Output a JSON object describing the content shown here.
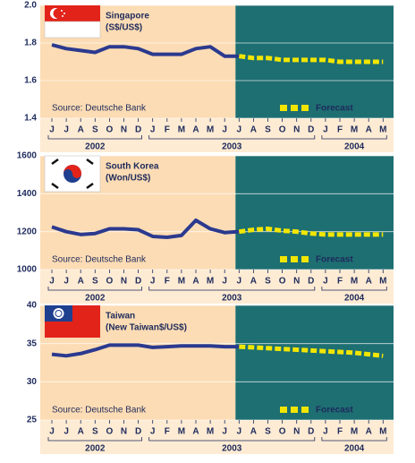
{
  "chart_data": [
    {
      "type": "line",
      "title": "Singapore",
      "subtitle": "(S$/US$)",
      "annotation": "Source: Deutsche Bank",
      "categories": [
        "J",
        "J",
        "A",
        "S",
        "O",
        "N",
        "D",
        "J",
        "F",
        "M",
        "A",
        "M",
        "J",
        "J",
        "A",
        "S",
        "O",
        "N",
        "D",
        "J",
        "F",
        "M",
        "A",
        "M"
      ],
      "year_labels": [
        "2002",
        "2003",
        "2004"
      ],
      "ylim": [
        1.4,
        2.0
      ],
      "yticks": [
        1.4,
        1.6,
        1.8,
        {
          "value": 2.0,
          "label": "2.0"
        }
      ],
      "grid": true,
      "series": [
        {
          "color": "#2b3a8f",
          "values": [
            1.79,
            1.77,
            1.76,
            1.75,
            1.78,
            1.78,
            1.77,
            1.74,
            1.74,
            1.74,
            1.77,
            1.78,
            1.73,
            1.73,
            null,
            null,
            null,
            null,
            null,
            null,
            null,
            null,
            null,
            null
          ]
        },
        {
          "name": "Forecast",
          "color": "#f2e600",
          "values": [
            null,
            null,
            null,
            null,
            null,
            null,
            null,
            null,
            null,
            null,
            null,
            null,
            null,
            1.73,
            1.72,
            1.72,
            1.71,
            1.71,
            1.71,
            1.71,
            1.7,
            1.7,
            1.7,
            1.7
          ]
        }
      ]
    },
    {
      "type": "line",
      "title": "South Korea",
      "subtitle": "(Won/US$)",
      "annotation": "Source: Deutsche Bank",
      "categories": [
        "J",
        "J",
        "A",
        "S",
        "O",
        "N",
        "D",
        "J",
        "F",
        "M",
        "A",
        "M",
        "J",
        "J",
        "A",
        "S",
        "O",
        "N",
        "D",
        "J",
        "F",
        "M",
        "A",
        "M"
      ],
      "year_labels": [
        "2002",
        "2003",
        "2004"
      ],
      "ylim": [
        1000,
        1600
      ],
      "yticks": [
        1000,
        1200,
        1400,
        1600
      ],
      "grid": true,
      "series": [
        {
          "color": "#2b3a8f",
          "values": [
            1225,
            1200,
            1185,
            1190,
            1215,
            1215,
            1210,
            1175,
            1170,
            1180,
            1260,
            1215,
            1195,
            1200,
            null,
            null,
            null,
            null,
            null,
            null,
            null,
            null,
            null,
            null
          ]
        },
        {
          "name": "Forecast",
          "color": "#f2e600",
          "values": [
            null,
            null,
            null,
            null,
            null,
            null,
            null,
            null,
            null,
            null,
            null,
            null,
            null,
            1200,
            1210,
            1215,
            1205,
            1200,
            1190,
            1185,
            1185,
            1185,
            1185,
            1185
          ]
        }
      ]
    },
    {
      "type": "line",
      "title": "Taiwan",
      "subtitle": "(New Taiwan$/US$)",
      "annotation": "Source: Deutsche Bank",
      "categories": [
        "J",
        "J",
        "A",
        "S",
        "O",
        "N",
        "D",
        "J",
        "F",
        "M",
        "A",
        "M",
        "J",
        "J",
        "A",
        "S",
        "O",
        "N",
        "D",
        "J",
        "F",
        "M",
        "A",
        "M"
      ],
      "year_labels": [
        "2002",
        "2003",
        "2004"
      ],
      "ylim": [
        25,
        40
      ],
      "yticks": [
        25,
        30,
        35,
        40
      ],
      "grid": true,
      "series": [
        {
          "color": "#2b3a8f",
          "values": [
            33.6,
            33.4,
            33.7,
            34.2,
            34.8,
            34.8,
            34.8,
            34.5,
            34.6,
            34.7,
            34.7,
            34.7,
            34.6,
            34.6,
            null,
            null,
            null,
            null,
            null,
            null,
            null,
            null,
            null,
            null
          ]
        },
        {
          "name": "Forecast",
          "color": "#f2e600",
          "values": [
            null,
            null,
            null,
            null,
            null,
            null,
            null,
            null,
            null,
            null,
            null,
            null,
            null,
            34.6,
            34.5,
            34.4,
            34.3,
            34.2,
            34.1,
            34.0,
            33.9,
            33.8,
            33.6,
            33.4
          ]
        }
      ]
    }
  ]
}
